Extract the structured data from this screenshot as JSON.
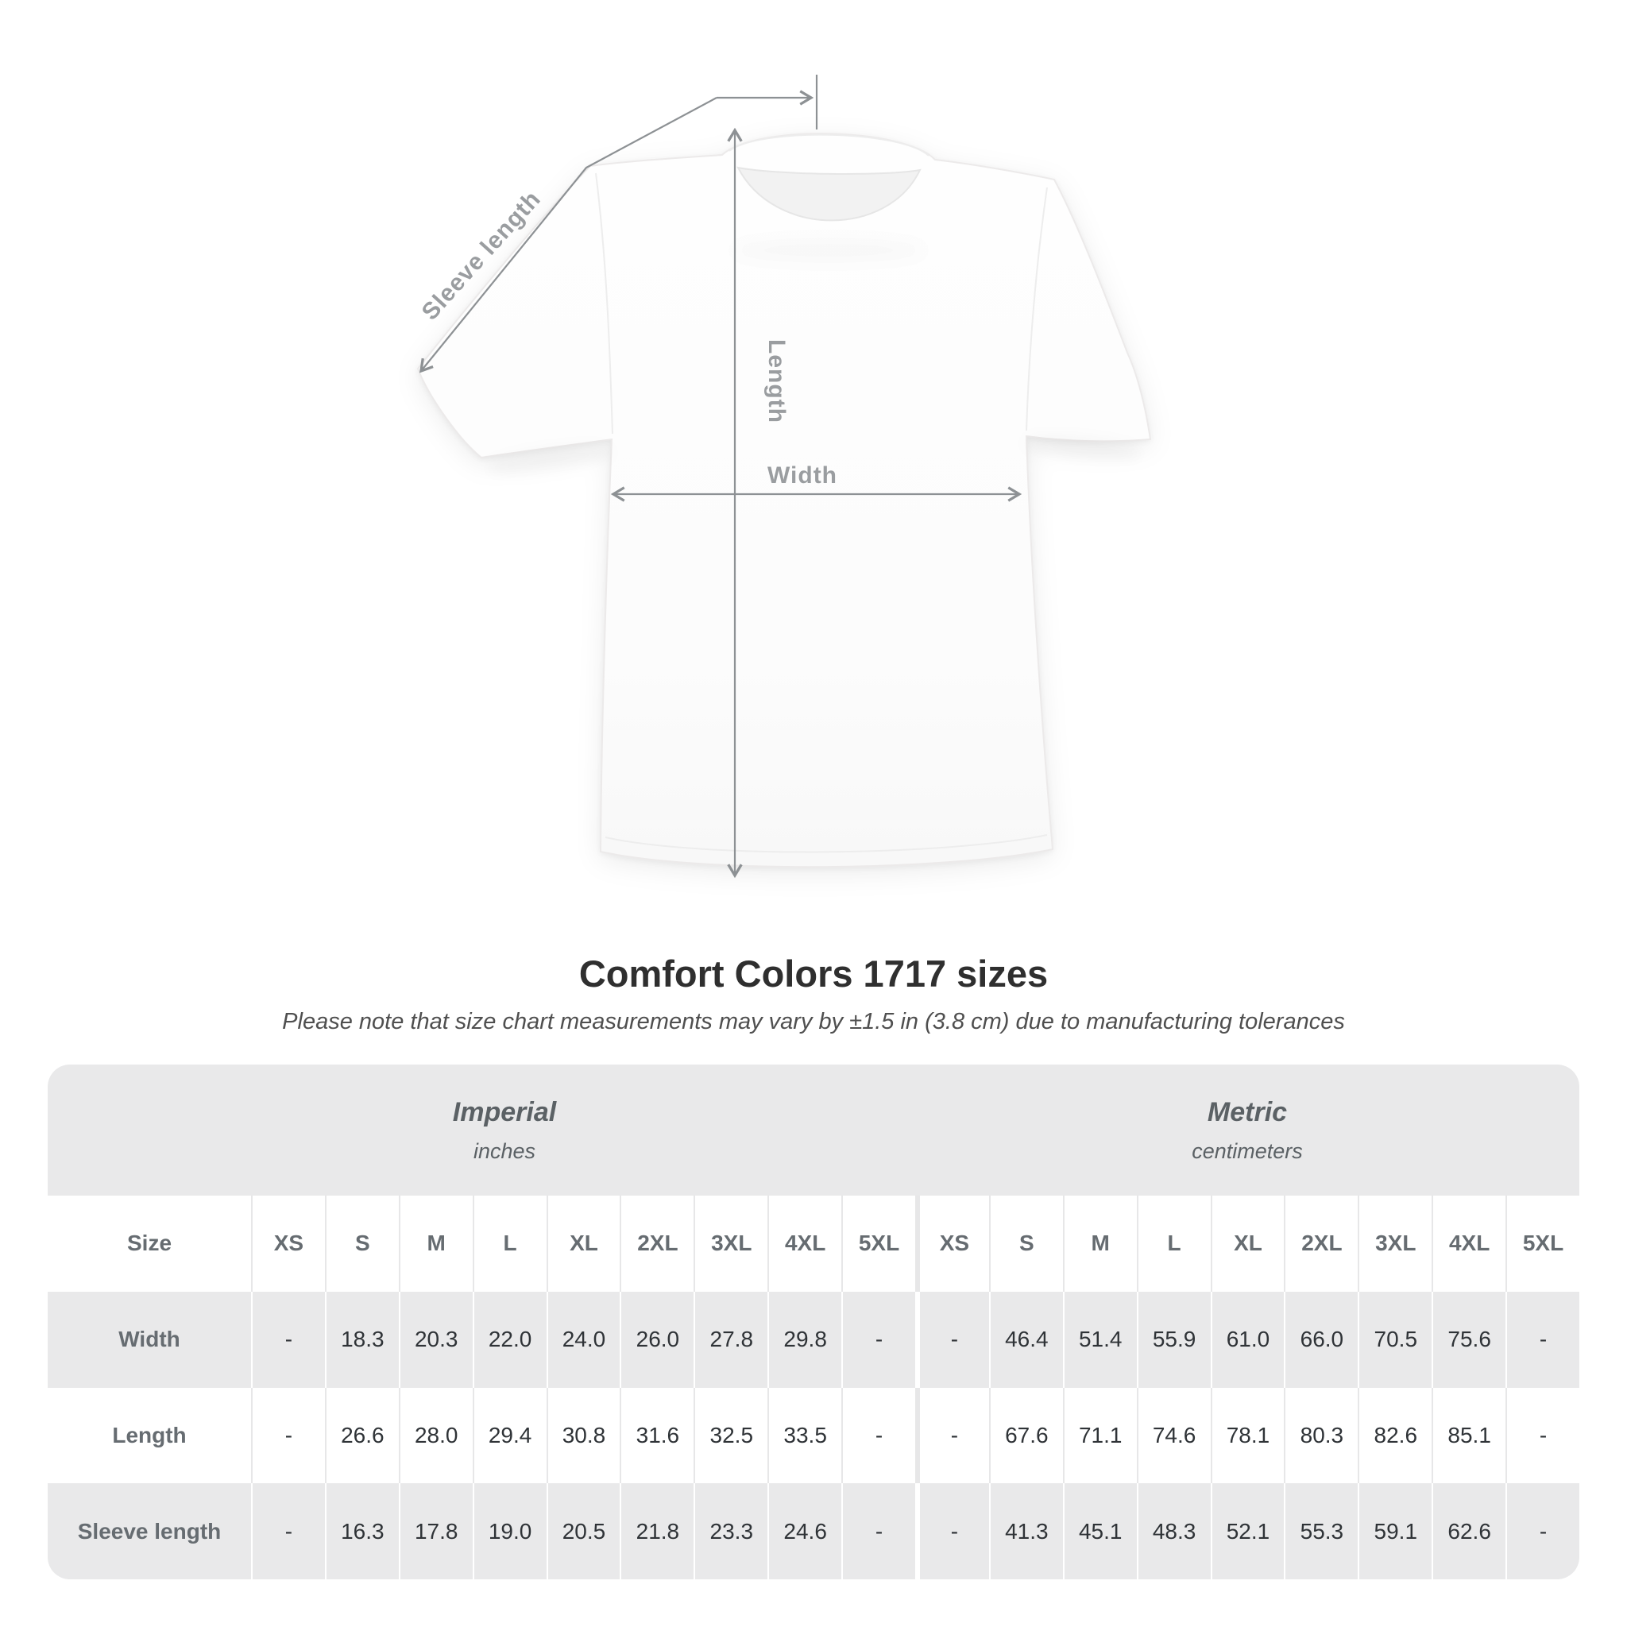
{
  "diagram": {
    "sleeve_label": "Sleeve length",
    "length_label": "Length",
    "width_label": "Width"
  },
  "title": "Comfort Colors 1717 sizes",
  "subtitle": "Please note that size chart measurements may vary by ±1.5 in (3.8 cm) due to manufacturing tolerances",
  "table": {
    "size_label": "Size",
    "groups": [
      {
        "name": "Imperial",
        "unit": "inches"
      },
      {
        "name": "Metric",
        "unit": "centimeters"
      }
    ],
    "sizes": [
      "XS",
      "S",
      "M",
      "L",
      "XL",
      "2XL",
      "3XL",
      "4XL",
      "5XL"
    ],
    "rows": [
      {
        "label": "Width",
        "imperial": [
          "-",
          "18.3",
          "20.3",
          "22.0",
          "24.0",
          "26.0",
          "27.8",
          "29.8",
          "-"
        ],
        "metric": [
          "-",
          "46.4",
          "51.4",
          "55.9",
          "61.0",
          "66.0",
          "70.5",
          "75.6",
          "-"
        ]
      },
      {
        "label": "Length",
        "imperial": [
          "-",
          "26.6",
          "28.0",
          "29.4",
          "30.8",
          "31.6",
          "32.5",
          "33.5",
          "-"
        ],
        "metric": [
          "-",
          "67.6",
          "71.1",
          "74.6",
          "78.1",
          "80.3",
          "82.6",
          "85.1",
          "-"
        ]
      },
      {
        "label": "Sleeve length",
        "imperial": [
          "-",
          "16.3",
          "17.8",
          "19.0",
          "20.5",
          "21.8",
          "23.3",
          "24.6",
          "-"
        ],
        "metric": [
          "-",
          "41.3",
          "45.1",
          "48.3",
          "52.1",
          "55.3",
          "59.1",
          "62.6",
          "-"
        ]
      }
    ]
  },
  "colors": {
    "band_bg": "#e9e9ea",
    "annotation_line": "#8d9194",
    "annotation_text": "#9a9da0",
    "header_text": "#666c71",
    "value_text": "#2f3337",
    "title_text": "#2f2f2f",
    "subtitle_text": "#4f4f4f"
  }
}
